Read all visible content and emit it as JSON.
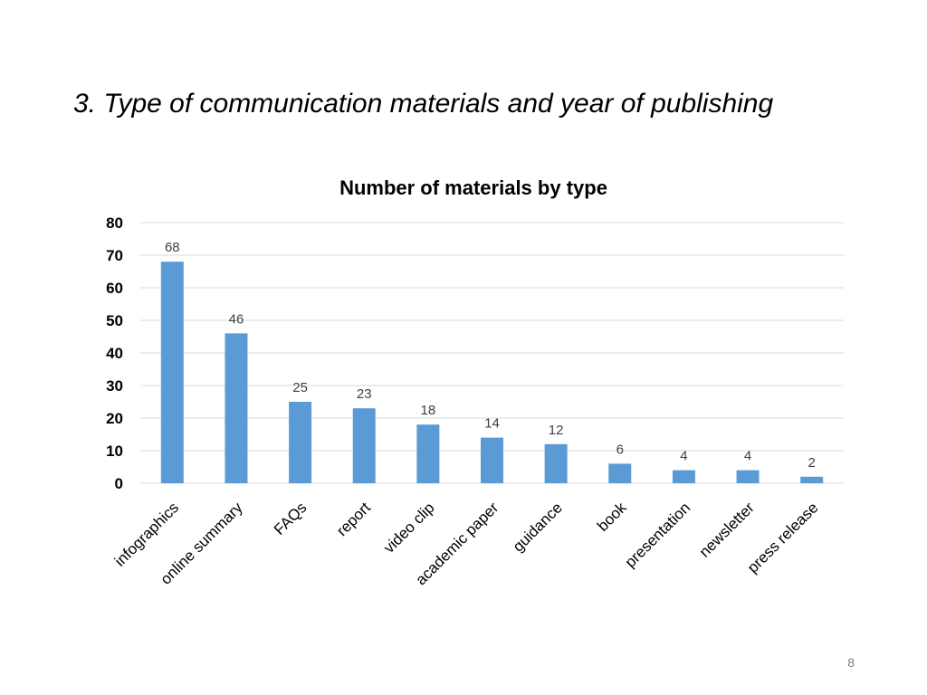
{
  "slide": {
    "title": "3. Type of communication materials and year of publishing",
    "page_number": "8"
  },
  "colors": {
    "bar": "#5b9bd5",
    "grid": "#d9d9d9",
    "axis_text": "#000000",
    "data_label": "#404040"
  },
  "chart_data": {
    "type": "bar",
    "title": "Number of materials by type",
    "xlabel": "",
    "ylabel": "",
    "categories": [
      "infographics",
      "online summary",
      "FAQs",
      "report",
      "video clip",
      "academic paper",
      "guidance",
      "book",
      "presentation",
      "newsletter",
      "press release"
    ],
    "values": [
      68,
      46,
      25,
      23,
      18,
      14,
      12,
      6,
      4,
      4,
      2
    ],
    "ylim": [
      0,
      80
    ],
    "yticks": [
      0,
      10,
      20,
      30,
      40,
      50,
      60,
      70,
      80
    ],
    "grid": true,
    "data_labels": true,
    "legend": "none"
  }
}
